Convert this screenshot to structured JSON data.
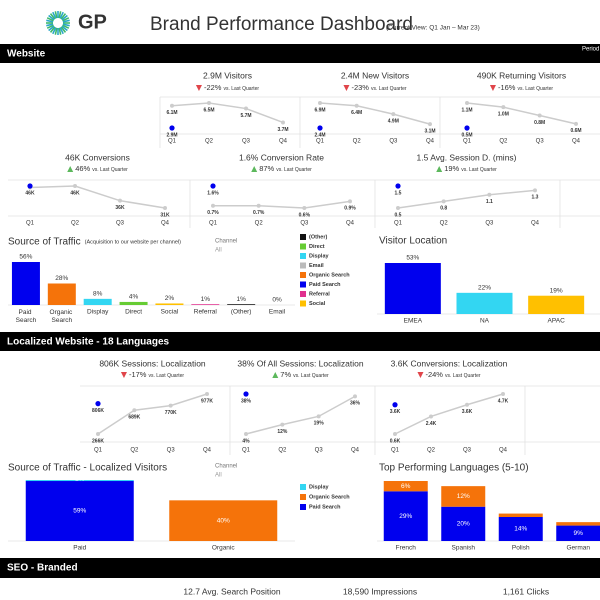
{
  "header": {
    "logo": "GP",
    "title": "Brand Performance Dashboard",
    "subtitle": "(Current View: Q1 Jan – Mar 23)"
  },
  "sections": [
    "Website",
    "Localized Website - 18 Languages",
    "SEO - Branded"
  ],
  "period_label": "Period",
  "chart_data": [
    {
      "type": "kpi-line",
      "title": "2.9M Visitors",
      "delta": "-22%",
      "delta_note": "vs. Last Quarter",
      "trend": "down",
      "categories": [
        "Q1",
        "Q2",
        "Q3",
        "Q4"
      ],
      "values": [
        6.1,
        6.5,
        5.7,
        3.7
      ],
      "value_labels": [
        "6.1M",
        "6.5M",
        "5.7M",
        "3.7M"
      ],
      "color": "#cccccc",
      "current": 2.9,
      "current_label": "2.9M",
      "current_color": "#0000ee"
    },
    {
      "type": "kpi-line",
      "title": "2.4M New Visitors",
      "delta": "-23%",
      "delta_note": "vs. Last Quarter",
      "trend": "down",
      "categories": [
        "Q1",
        "Q2",
        "Q3",
        "Q4"
      ],
      "values": [
        6.9,
        6.4,
        4.9,
        3.1
      ],
      "value_labels": [
        "6.9M",
        "6.4M",
        "4.9M",
        "3.1M"
      ],
      "color": "#cccccc",
      "current": 2.4,
      "current_label": "2.4M",
      "current_color": "#0000ee"
    },
    {
      "type": "kpi-line",
      "title": "490K Returning Visitors",
      "delta": "-16%",
      "delta_note": "vs. Last Quarter",
      "trend": "down",
      "categories": [
        "Q1",
        "Q2",
        "Q3",
        "Q4"
      ],
      "values": [
        1.1,
        1.0,
        0.8,
        0.6
      ],
      "value_labels": [
        "1.1M",
        "1.0M",
        "0.8M",
        "0.6M"
      ],
      "color": "#cccccc",
      "current": 0.5,
      "current_label": "0.5M",
      "current_color": "#0000ee"
    },
    {
      "type": "kpi-line",
      "title": "46K Conversions",
      "delta": "46%",
      "delta_note": "vs. Last Quarter",
      "trend": "up",
      "categories": [
        "Q1",
        "Q2",
        "Q3",
        "Q4"
      ],
      "values": [
        45,
        46,
        36,
        31
      ],
      "value_labels": [
        null,
        "46K",
        "36K",
        "31K"
      ],
      "color": "#cccccc",
      "current": 46,
      "current_label": "46K",
      "current_color": "#0000ee"
    },
    {
      "type": "kpi-line",
      "title": "1.6% Conversion Rate",
      "delta": "87%",
      "delta_note": "vs. Last Quarter",
      "trend": "up",
      "categories": [
        "Q1",
        "Q2",
        "Q3",
        "Q4"
      ],
      "values": [
        0.7,
        0.7,
        0.6,
        0.9
      ],
      "value_labels": [
        "0.7%",
        "0.7%",
        "0.6%",
        "0.9%"
      ],
      "color": "#cccccc",
      "current": 1.6,
      "current_label": "1.6%",
      "current_color": "#0000ee"
    },
    {
      "type": "kpi-line",
      "title": "1.5 Avg. Session D. (mins)",
      "delta": "19%",
      "delta_note": "vs. Last Quarter",
      "trend": "up",
      "categories": [
        "Q1",
        "Q2",
        "Q3",
        "Q4"
      ],
      "values": [
        0.5,
        0.8,
        1.1,
        1.3
      ],
      "color": "#cccccc",
      "current": 1.5,
      "current_color": "#0000ee"
    },
    {
      "type": "bar",
      "title": "Source of Traffic",
      "subtitle": "(Acquisition to our website per channel)",
      "filter_label": "Channel",
      "filter_value": "All",
      "categories": [
        "Paid Search",
        "Organic Search",
        "Display",
        "Direct",
        "Social",
        "Referral",
        "(Other)",
        "Email"
      ],
      "values": [
        56,
        28,
        8,
        4,
        2,
        1,
        1,
        0
      ],
      "value_labels": [
        "56%",
        "28%",
        "8%",
        "4%",
        "2%",
        "1%",
        "1%",
        "0%"
      ],
      "colors": [
        "#0000ee",
        "#f5730a",
        "#33d6f2",
        "#66cc33",
        "#ffc000",
        "#e0308e",
        "#111111",
        "#bbbbbb"
      ],
      "legend": [
        {
          "name": "(Other)",
          "color": "#111111"
        },
        {
          "name": "Direct",
          "color": "#66cc33"
        },
        {
          "name": "Display",
          "color": "#33d6f2"
        },
        {
          "name": "Email",
          "color": "#bbbbbb"
        },
        {
          "name": "Organic Search",
          "color": "#f5730a"
        },
        {
          "name": "Paid Search",
          "color": "#0000ee"
        },
        {
          "name": "Referral",
          "color": "#e0308e"
        },
        {
          "name": "Social",
          "color": "#ffc000"
        }
      ]
    },
    {
      "type": "bar",
      "title": "Visitor Location",
      "categories": [
        "EMEA",
        "NA",
        "APAC"
      ],
      "values": [
        53,
        22,
        19
      ],
      "value_labels": [
        "53%",
        "22%",
        "19%"
      ],
      "colors": [
        "#0000ee",
        "#33d6f2",
        "#ffc000"
      ]
    },
    {
      "type": "kpi-line",
      "title": "806K Sessions: Localization",
      "delta": "-17%",
      "delta_note": "vs. Last Quarter",
      "trend": "down",
      "categories": [
        "Q1",
        "Q2",
        "Q3",
        "Q4"
      ],
      "values": [
        266,
        689,
        770,
        977
      ],
      "value_labels": [
        "266K",
        "689K",
        "770K",
        "977K"
      ],
      "color": "#cccccc",
      "current": 806,
      "current_label": "806K",
      "current_color": "#0000ee"
    },
    {
      "type": "kpi-line",
      "title": "38% Of All Sessions: Localization",
      "delta": "7%",
      "delta_note": "vs. Last Quarter",
      "trend": "up",
      "categories": [
        "Q1",
        "Q2",
        "Q3",
        "Q4"
      ],
      "values": [
        4,
        12,
        19,
        36
      ],
      "value_labels": [
        "4%",
        "12%",
        "19%",
        "36%"
      ],
      "color": "#cccccc",
      "current": 38,
      "current_label": "38%",
      "current_color": "#0000ee"
    },
    {
      "type": "kpi-line",
      "title": "3.6K Conversions: Localization",
      "delta": "-24%",
      "delta_note": "vs. Last Quarter",
      "trend": "down",
      "categories": [
        "Q1",
        "Q2",
        "Q3",
        "Q4"
      ],
      "values": [
        0.6,
        2.4,
        3.6,
        4.7
      ],
      "value_labels": [
        "0.6K",
        "2.4K",
        "3.6K",
        "4.7K"
      ],
      "color": "#cccccc",
      "current": 3.6,
      "current_label": "3.6K",
      "current_color": "#0000ee"
    },
    {
      "type": "stacked-bar",
      "title": "Source of Traffic - Localized Visitors",
      "filter_label": "Channel",
      "filter_value": "All",
      "categories": [
        "Paid",
        "Organic"
      ],
      "series": [
        {
          "name": "Display",
          "color": "#33d6f2",
          "values": [
            1,
            null
          ],
          "value_labels": [
            "1%",
            null
          ]
        },
        {
          "name": "Organic Search",
          "color": "#f5730a",
          "values": [
            null,
            40
          ],
          "value_labels": [
            null,
            "40%"
          ]
        },
        {
          "name": "Paid Search",
          "color": "#0000ee",
          "values": [
            59,
            null
          ],
          "value_labels": [
            "59%",
            null
          ]
        }
      ]
    },
    {
      "type": "stacked-bar",
      "title": "Top Performing Languages (5-10)",
      "categories": [
        "French",
        "Spanish",
        "Polish",
        "German"
      ],
      "series": [
        {
          "color": "#f5730a",
          "values": [
            6,
            12,
            2,
            2
          ],
          "value_labels": [
            "6%",
            "12%",
            null,
            null
          ]
        },
        {
          "color": "#0000ee",
          "values": [
            29,
            20,
            14,
            9
          ],
          "value_labels": [
            "29%",
            "20%",
            "14%",
            "9%"
          ]
        }
      ]
    }
  ],
  "seo": [
    "12.7 Avg. Search Position",
    "18,590 Impressions",
    "1,161 Clicks"
  ]
}
